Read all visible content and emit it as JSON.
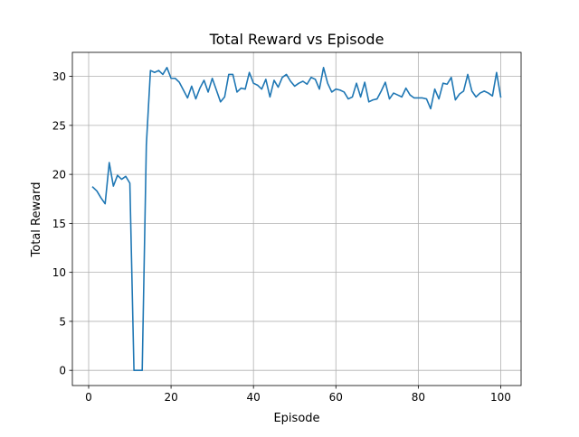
{
  "chart_data": {
    "type": "line",
    "title": "Total Reward vs Episode",
    "xlabel": "Episode",
    "ylabel": "Total Reward",
    "xlim": [
      -3.95,
      104.95
    ],
    "ylim": [
      -1.55,
      32.45
    ],
    "xticks": [
      0,
      20,
      40,
      60,
      80,
      100
    ],
    "yticks": [
      0,
      5,
      10,
      15,
      20,
      25,
      30
    ],
    "grid": true,
    "legend": "none",
    "line_color": "#1f77b4",
    "x": [
      1,
      2,
      3,
      4,
      5,
      6,
      7,
      8,
      9,
      10,
      11,
      12,
      13,
      14,
      15,
      16,
      17,
      18,
      19,
      20,
      21,
      22,
      23,
      24,
      25,
      26,
      27,
      28,
      29,
      30,
      31,
      32,
      33,
      34,
      35,
      36,
      37,
      38,
      39,
      40,
      41,
      42,
      43,
      44,
      45,
      46,
      47,
      48,
      49,
      50,
      51,
      52,
      53,
      54,
      55,
      56,
      57,
      58,
      59,
      60,
      61,
      62,
      63,
      64,
      65,
      66,
      67,
      68,
      69,
      70,
      71,
      72,
      73,
      74,
      75,
      76,
      77,
      78,
      79,
      80,
      81,
      82,
      83,
      84,
      85,
      86,
      87,
      88,
      89,
      90,
      91,
      92,
      93,
      94,
      95,
      96,
      97,
      98,
      99,
      100
    ],
    "values": [
      18.7,
      18.3,
      17.6,
      17.0,
      21.2,
      18.8,
      19.9,
      19.5,
      19.8,
      19.1,
      0.0,
      0.0,
      0.0,
      23.0,
      30.6,
      30.4,
      30.6,
      30.2,
      30.9,
      29.8,
      29.8,
      29.4,
      28.6,
      27.8,
      29.0,
      27.7,
      28.8,
      29.6,
      28.4,
      29.8,
      28.6,
      27.4,
      27.9,
      30.2,
      30.2,
      28.4,
      28.8,
      28.7,
      30.4,
      29.3,
      29.1,
      28.7,
      29.7,
      27.9,
      29.6,
      28.9,
      29.9,
      30.2,
      29.5,
      29.0,
      29.3,
      29.5,
      29.2,
      29.9,
      29.7,
      28.7,
      30.9,
      29.3,
      28.4,
      28.7,
      28.6,
      28.4,
      27.7,
      27.9,
      29.3,
      27.9,
      29.4,
      27.4,
      27.6,
      27.7,
      28.5,
      29.4,
      27.7,
      28.3,
      28.1,
      27.9,
      28.8,
      28.1,
      27.8,
      27.8,
      27.8,
      27.7,
      26.7,
      28.7,
      27.7,
      29.3,
      29.2,
      29.9,
      27.6,
      28.2,
      28.5,
      30.2,
      28.5,
      27.9,
      28.3,
      28.5,
      28.3,
      28.0,
      30.4,
      27.9
    ]
  }
}
